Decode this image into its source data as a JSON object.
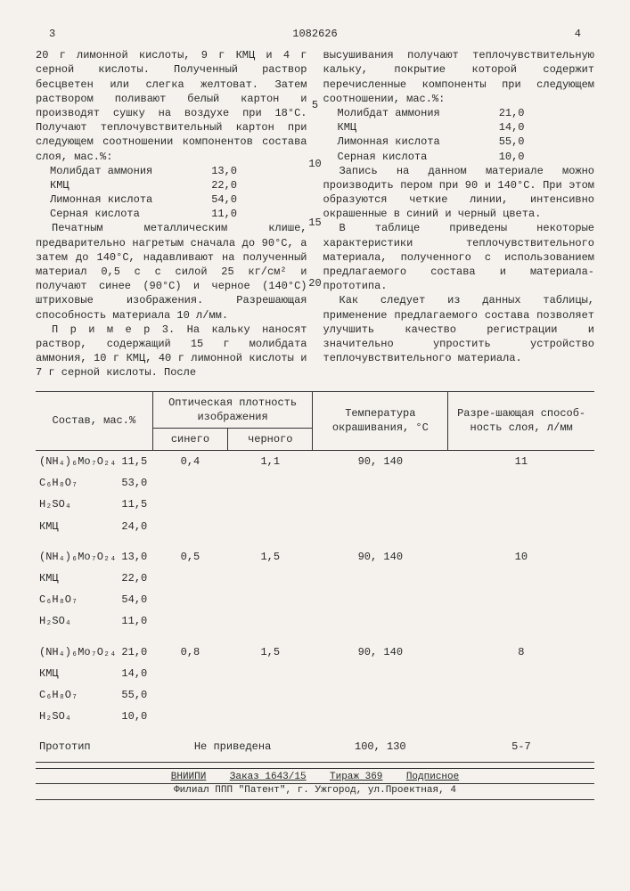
{
  "header": {
    "left_col": "3",
    "doc_number": "1082626",
    "right_col": "4"
  },
  "line_marks": {
    "m5": "5",
    "m10": "10",
    "m15": "15",
    "m20": "20"
  },
  "left": {
    "p1": "20 г лимонной кислоты, 9 г КМЦ и 4 г серной кислоты. Полученный раствор бесцветен или слегка желтоват. Затем раствором поливают белый картон и производят сушку на воздухе при 18°С. Получают теплочувствительный картон при следующем соотношении компонентов состава слоя, мас.%:",
    "comp1": [
      {
        "name": "Молибдат аммония",
        "val": "13,0"
      },
      {
        "name": "КМЦ",
        "val": "22,0"
      },
      {
        "name": "Лимонная кислота",
        "val": "54,0"
      },
      {
        "name": "Серная кислота",
        "val": "11,0"
      }
    ],
    "p2": "Печатным металлическим клише, предварительно нагретым сначала до 90°С, а затем до 140°С, надавливают на полученный материал 0,5 с с силой 25 кг/см² и получают синее (90°С) и черное (140°С) штриховые изображения. Разрешающая способность материала 10 л/мм.",
    "p3": "П р и м е р 3. На кальку наносят раствор, содержащий 15 г молибдата аммония, 10 г КМЦ, 40 г лимонной кислоты и 7 г серной кислоты. После"
  },
  "right": {
    "p1": "высушивания получают теплочувствительную кальку, покрытие которой содержит перечисленные компоненты при следующем соотношении, мас.%:",
    "comp2": [
      {
        "name": "Молибдат аммония",
        "val": "21,0"
      },
      {
        "name": "КМЦ",
        "val": "14,0"
      },
      {
        "name": "Лимонная кислота",
        "val": "55,0"
      },
      {
        "name": "Серная кислота",
        "val": "10,0"
      }
    ],
    "p2": "Запись на данном материале можно производить пером при 90 и 140°С. При этом образуются четкие линии, интенсивно окрашенные в синий и черный цвета.",
    "p3": "В таблице приведены некоторые характеристики теплочувствительного материала, полученного с использованием предлагаемого состава и материала-прототипа.",
    "p4": "Как следует из данных таблицы, применение предлагаемого состава позволяет улучшить качество регистрации и значительно упростить устройство теплочувствительного материала."
  },
  "table": {
    "headers": {
      "composition": "Состав, мас.%",
      "density": "Оптическая плотность изображения",
      "blue": "синего",
      "black": "черного",
      "temp": "Температура окрашивания, °С",
      "resolution": "Разре-шающая способ-ность слоя, л/мм"
    },
    "groups": [
      {
        "blue": "0,4",
        "black": "1,1",
        "temp": "90, 140",
        "res": "11",
        "rows": [
          {
            "f": "(NH₄)₆Mo₇O₂₄",
            "v": "11,5"
          },
          {
            "f": "C₆H₈O₇",
            "v": "53,0"
          },
          {
            "f": "H₂SO₄",
            "v": "11,5"
          },
          {
            "f": "КМЦ",
            "v": "24,0"
          }
        ]
      },
      {
        "blue": "0,5",
        "black": "1,5",
        "temp": "90, 140",
        "res": "10",
        "rows": [
          {
            "f": "(NH₄)₆Mo₇O₂₄",
            "v": "13,0"
          },
          {
            "f": "КМЦ",
            "v": "22,0"
          },
          {
            "f": "C₆H₈O₇",
            "v": "54,0"
          },
          {
            "f": "H₂SO₄",
            "v": "11,0"
          }
        ]
      },
      {
        "blue": "0,8",
        "black": "1,5",
        "temp": "90, 140",
        "res": "8",
        "rows": [
          {
            "f": "(NH₄)₆Mo₇O₂₄",
            "v": "21,0"
          },
          {
            "f": "КМЦ",
            "v": "14,0"
          },
          {
            "f": "C₆H₈O₇",
            "v": "55,0"
          },
          {
            "f": "H₂SO₄",
            "v": "10,0"
          }
        ]
      }
    ],
    "prototype": {
      "label": "Прототип",
      "density": "Не приведена",
      "temp": "100, 130",
      "res": "5-7"
    }
  },
  "footer": {
    "line1a": "ВНИИПИ",
    "line1b": "Заказ 1643/15",
    "line1c": "Тираж 369",
    "line1d": "Подписное",
    "line2": "Филиал ППП \"Патент\", г. Ужгород, ул.Проектная, 4"
  }
}
